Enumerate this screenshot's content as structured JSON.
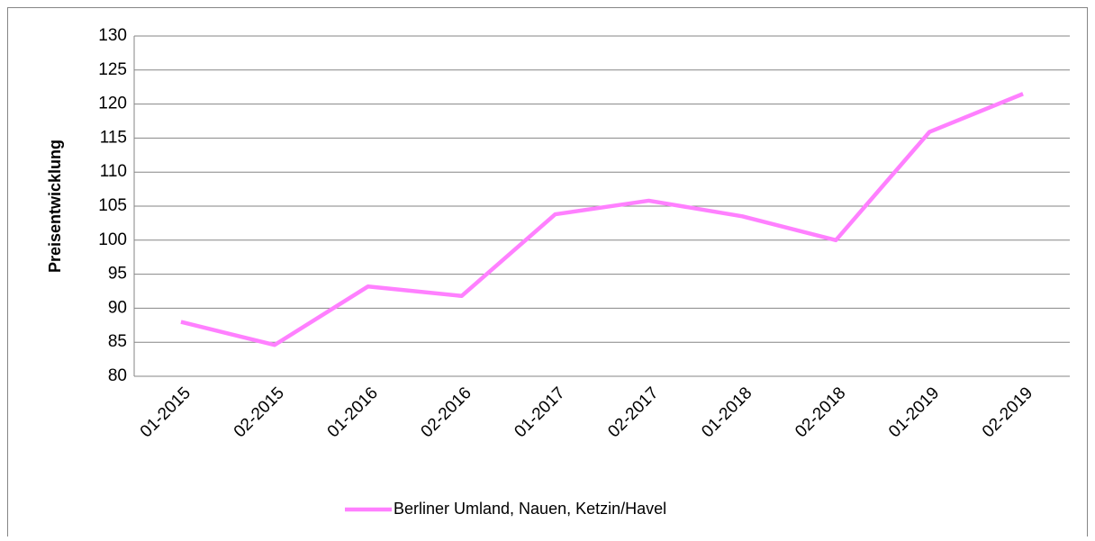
{
  "chart_data": {
    "type": "line",
    "y_label": "Preisentwicklung",
    "categories": [
      "01-2015",
      "02-2015",
      "01-2016",
      "02-2016",
      "01-2017",
      "02-2017",
      "01-2018",
      "02-2018",
      "01-2019",
      "02-2019"
    ],
    "series": [
      {
        "name": "Berliner Umland, Nauen, Ketzin/Havel",
        "color": "#ff80ff",
        "values": [
          88,
          84.6,
          93.2,
          91.8,
          103.8,
          105.8,
          103.5,
          100,
          115.9,
          121.5
        ]
      }
    ],
    "ylim": [
      80,
      130
    ],
    "yticks": [
      80,
      85,
      90,
      95,
      100,
      105,
      110,
      115,
      120,
      125,
      130
    ],
    "grid": true,
    "legend": "bottom"
  }
}
